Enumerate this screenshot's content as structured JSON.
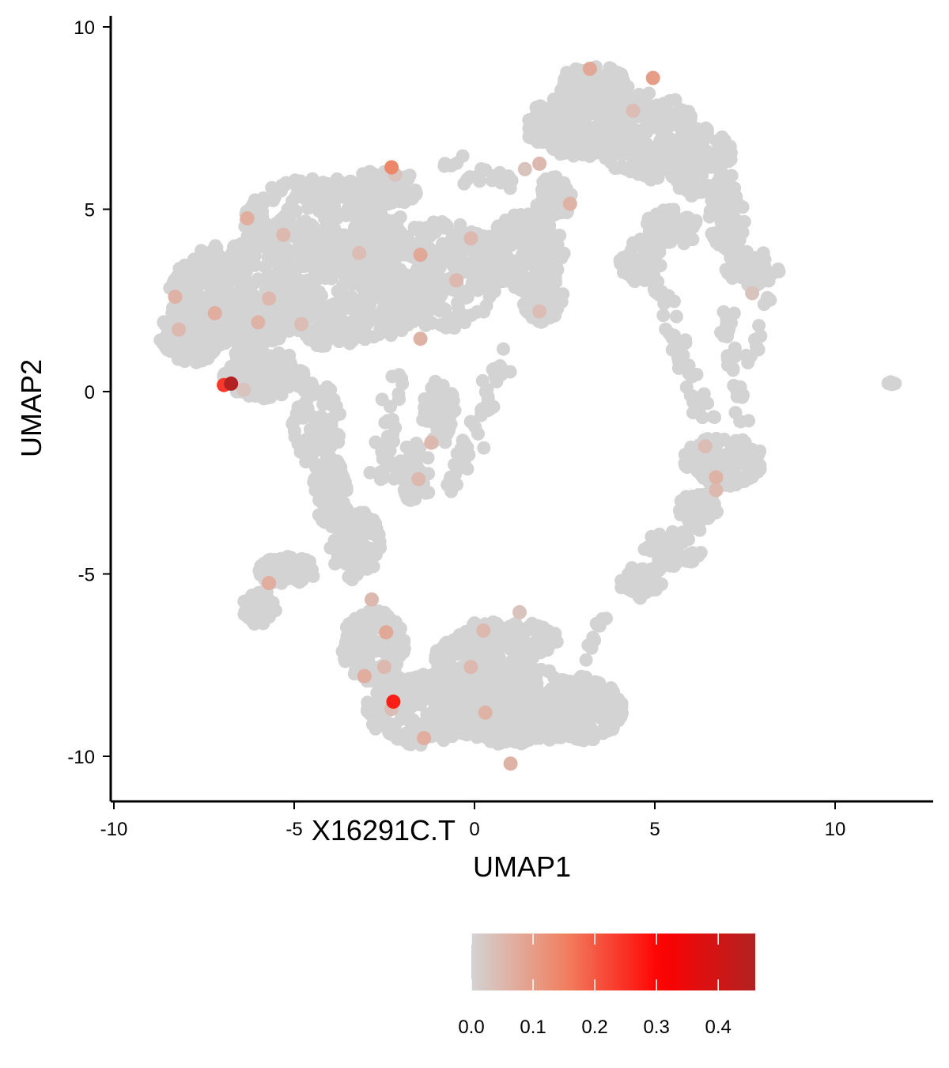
{
  "chart_data": {
    "type": "scatter",
    "title": "",
    "xlabel": "UMAP1",
    "ylabel": "UMAP2",
    "xlim": [
      -10.1,
      12.6
    ],
    "ylim": [
      -11.3,
      10.3
    ],
    "x_ticks": [
      -10,
      -5,
      0,
      5,
      10
    ],
    "x_tick_labels": [
      "-10",
      "-5",
      "0",
      "5",
      "10"
    ],
    "y_ticks": [
      -10,
      -5,
      0,
      5,
      10
    ],
    "y_tick_labels": [
      "-10",
      "-5",
      "0",
      "5",
      "10"
    ],
    "grid": false,
    "legend": {
      "title": "X16291C.T",
      "position": "bottom",
      "type": "colorbar",
      "range": [
        0,
        0.46
      ],
      "ticks": [
        0.0,
        0.1,
        0.2,
        0.3,
        0.4
      ],
      "tick_labels": [
        "0.0",
        "0.1",
        "0.2",
        "0.3",
        "0.4"
      ],
      "colors": [
        "#d3d3d3",
        "#f08060",
        "#ff0000",
        "#b22222"
      ]
    },
    "background_color": "#d3d3d3",
    "highlight_points": [
      {
        "x": 3.2,
        "y": 8.85,
        "value": 0.08
      },
      {
        "x": 4.95,
        "y": 8.6,
        "value": 0.1
      },
      {
        "x": 4.4,
        "y": 7.7,
        "value": 0.04
      },
      {
        "x": -2.3,
        "y": 6.15,
        "value": 0.14
      },
      {
        "x": -2.2,
        "y": 5.95,
        "value": 0.03
      },
      {
        "x": 1.8,
        "y": 6.25,
        "value": 0.05
      },
      {
        "x": 1.4,
        "y": 6.1,
        "value": 0.03
      },
      {
        "x": 2.65,
        "y": 5.15,
        "value": 0.06
      },
      {
        "x": -6.3,
        "y": 4.75,
        "value": 0.07
      },
      {
        "x": -5.3,
        "y": 4.3,
        "value": 0.05
      },
      {
        "x": -0.1,
        "y": 4.2,
        "value": 0.05
      },
      {
        "x": -3.2,
        "y": 3.8,
        "value": 0.04
      },
      {
        "x": -1.5,
        "y": 3.75,
        "value": 0.08
      },
      {
        "x": -0.5,
        "y": 3.05,
        "value": 0.05
      },
      {
        "x": -8.3,
        "y": 2.6,
        "value": 0.06
      },
      {
        "x": -5.7,
        "y": 2.55,
        "value": 0.05
      },
      {
        "x": -7.2,
        "y": 2.15,
        "value": 0.07
      },
      {
        "x": -6.0,
        "y": 1.9,
        "value": 0.06
      },
      {
        "x": -4.8,
        "y": 1.85,
        "value": 0.04
      },
      {
        "x": -8.2,
        "y": 1.7,
        "value": 0.05
      },
      {
        "x": 1.8,
        "y": 2.2,
        "value": 0.04
      },
      {
        "x": 7.7,
        "y": 2.7,
        "value": 0.03
      },
      {
        "x": -1.5,
        "y": 1.45,
        "value": 0.06
      },
      {
        "x": -6.4,
        "y": 0.05,
        "value": 0.03
      },
      {
        "x": -1.2,
        "y": -1.4,
        "value": 0.05
      },
      {
        "x": -1.55,
        "y": -2.4,
        "value": 0.05
      },
      {
        "x": 6.4,
        "y": -1.5,
        "value": 0.04
      },
      {
        "x": 6.7,
        "y": -2.35,
        "value": 0.06
      },
      {
        "x": 6.7,
        "y": -2.7,
        "value": 0.05
      },
      {
        "x": -5.7,
        "y": -5.25,
        "value": 0.07
      },
      {
        "x": -2.85,
        "y": -5.7,
        "value": 0.05
      },
      {
        "x": 1.25,
        "y": -6.05,
        "value": 0.03
      },
      {
        "x": 0.25,
        "y": -6.55,
        "value": 0.05
      },
      {
        "x": -2.45,
        "y": -6.6,
        "value": 0.08
      },
      {
        "x": -0.1,
        "y": -7.55,
        "value": 0.05
      },
      {
        "x": -2.5,
        "y": -7.55,
        "value": 0.05
      },
      {
        "x": -3.05,
        "y": -7.8,
        "value": 0.07
      },
      {
        "x": -2.3,
        "y": -8.7,
        "value": 0.04
      },
      {
        "x": 0.3,
        "y": -8.8,
        "value": 0.06
      },
      {
        "x": -1.4,
        "y": -9.5,
        "value": 0.07
      },
      {
        "x": 1.0,
        "y": -10.2,
        "value": 0.06
      },
      {
        "x": -2.25,
        "y": -8.5,
        "value": 0.27
      },
      {
        "x": -6.95,
        "y": 0.18,
        "value": 0.24
      },
      {
        "x": -6.75,
        "y": 0.22,
        "value": 0.46
      }
    ]
  }
}
